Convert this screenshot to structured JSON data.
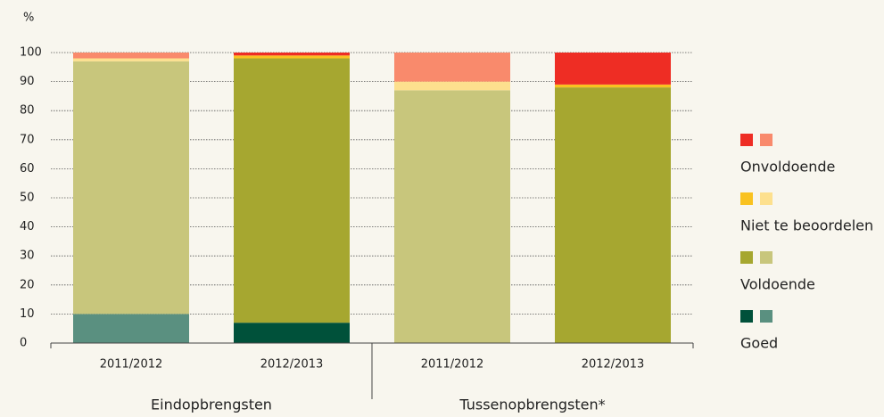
{
  "chart_data": {
    "type": "stacked_bar",
    "y_label": "%",
    "groups": [
      {
        "label": "Eindopbrengsten",
        "categories": [
          "2011/2012",
          "2012/2013"
        ]
      },
      {
        "label": "Tussenopbrengsten*",
        "categories": [
          "2011/2012",
          "2012/2013"
        ]
      }
    ],
    "series": [
      {
        "name": "Goed",
        "colors": [
          "#5a9080",
          "#00513a",
          "#5a9080",
          "#00513a"
        ],
        "values": [
          10,
          7,
          0,
          0
        ]
      },
      {
        "name": "Voldoende",
        "colors": [
          "#c8c67c",
          "#a6a730",
          "#c8c67c",
          "#a6a730"
        ],
        "values": [
          87,
          91,
          87,
          88
        ]
      },
      {
        "name": "Niet te beoordelen",
        "colors": [
          "#fde08e",
          "#f9c220",
          "#fde08e",
          "#f9c220"
        ],
        "values": [
          1,
          1,
          3,
          1
        ]
      },
      {
        "name": "Onvoldoende",
        "colors": [
          "#f98a6c",
          "#ee2d24",
          "#f98a6c",
          "#ee2d24"
        ],
        "values": [
          2,
          1,
          10,
          11
        ]
      }
    ],
    "ylim": [
      0,
      100
    ],
    "yticks": [
      0,
      10,
      20,
      30,
      40,
      50,
      60,
      70,
      80,
      90,
      100
    ],
    "grid": true
  }
}
